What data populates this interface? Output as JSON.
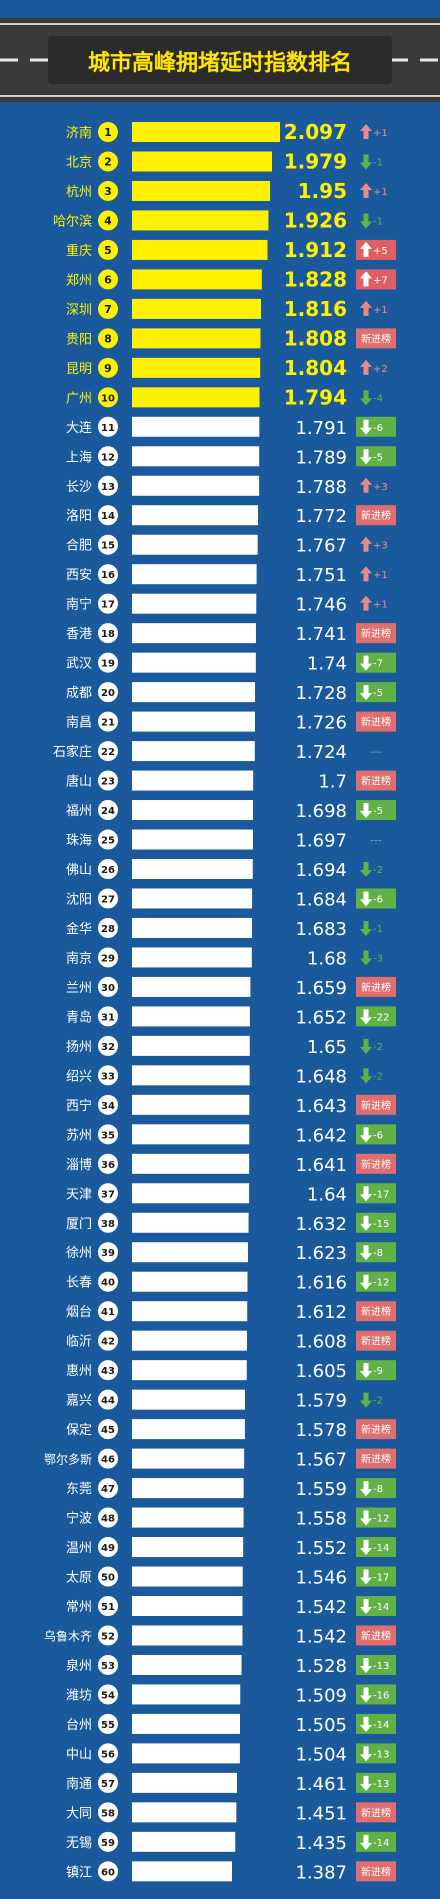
{
  "title": "城市高峰拥堵延时指数排名",
  "colors": {
    "background": "#1a5a9c",
    "header": "#3a3a3a",
    "title": "#ffe600",
    "top10_bar": "#fff200",
    "bar": "#ffffff",
    "top10_text": "#fff200",
    "text": "#ffffff",
    "badge_box": "#ffffff",
    "up_arrow": "#e88a8a",
    "down_arrow": "#62b146",
    "up_box": "#df5f63",
    "down_box": "#62b146",
    "new_box": "#df6f6f",
    "flat": "#7f9fc0"
  },
  "chart_data": {
    "type": "bar",
    "title": "城市高峰拥堵延时指数排名",
    "orientation": "horizontal",
    "change_legend": {
      "new": "新进榜",
      "flat": "---"
    },
    "rows": [
      {
        "rank": 1,
        "city": "济南",
        "value": 2.097,
        "change": "+1",
        "dir": "up",
        "box": false
      },
      {
        "rank": 2,
        "city": "北京",
        "value": 1.979,
        "change": "-1",
        "dir": "down",
        "box": false
      },
      {
        "rank": 3,
        "city": "杭州",
        "value": 1.95,
        "change": "+1",
        "dir": "up",
        "box": false
      },
      {
        "rank": 4,
        "city": "哈尔滨",
        "value": 1.926,
        "change": "-1",
        "dir": "down",
        "box": false
      },
      {
        "rank": 5,
        "city": "重庆",
        "value": 1.912,
        "change": "+5",
        "dir": "up",
        "box": true
      },
      {
        "rank": 6,
        "city": "郑州",
        "value": 1.828,
        "change": "+7",
        "dir": "up",
        "box": true
      },
      {
        "rank": 7,
        "city": "深圳",
        "value": 1.816,
        "change": "+1",
        "dir": "up",
        "box": false
      },
      {
        "rank": 8,
        "city": "贵阳",
        "value": 1.808,
        "change": "新进榜",
        "dir": "new",
        "box": true
      },
      {
        "rank": 9,
        "city": "昆明",
        "value": 1.804,
        "change": "+2",
        "dir": "up",
        "box": false
      },
      {
        "rank": 10,
        "city": "广州",
        "value": 1.794,
        "change": "-4",
        "dir": "down",
        "box": false
      },
      {
        "rank": 11,
        "city": "大连",
        "value": 1.791,
        "change": "-6",
        "dir": "down",
        "box": true
      },
      {
        "rank": 12,
        "city": "上海",
        "value": 1.789,
        "change": "-5",
        "dir": "down",
        "box": true
      },
      {
        "rank": 13,
        "city": "长沙",
        "value": 1.788,
        "change": "+3",
        "dir": "up",
        "box": false
      },
      {
        "rank": 14,
        "city": "洛阳",
        "value": 1.772,
        "change": "新进榜",
        "dir": "new",
        "box": true
      },
      {
        "rank": 15,
        "city": "合肥",
        "value": 1.767,
        "change": "+3",
        "dir": "up",
        "box": false
      },
      {
        "rank": 16,
        "city": "西安",
        "value": 1.751,
        "change": "+1",
        "dir": "up",
        "box": false
      },
      {
        "rank": 17,
        "city": "南宁",
        "value": 1.746,
        "change": "+1",
        "dir": "up",
        "box": false
      },
      {
        "rank": 18,
        "city": "香港",
        "value": 1.741,
        "change": "新进榜",
        "dir": "new",
        "box": true
      },
      {
        "rank": 19,
        "city": "武汉",
        "value": 1.74,
        "change": "-7",
        "dir": "down",
        "box": true
      },
      {
        "rank": 20,
        "city": "成都",
        "value": 1.728,
        "change": "-5",
        "dir": "down",
        "box": true
      },
      {
        "rank": 21,
        "city": "南昌",
        "value": 1.726,
        "change": "新进榜",
        "dir": "new",
        "box": true
      },
      {
        "rank": 22,
        "city": "石家庄",
        "value": 1.724,
        "change": "---",
        "dir": "flat",
        "box": false
      },
      {
        "rank": 23,
        "city": "唐山",
        "value": 1.7,
        "change": "新进榜",
        "dir": "new",
        "box": true
      },
      {
        "rank": 24,
        "city": "福州",
        "value": 1.698,
        "change": "-5",
        "dir": "down",
        "box": true
      },
      {
        "rank": 25,
        "city": "珠海",
        "value": 1.697,
        "change": "---",
        "dir": "flat",
        "box": false
      },
      {
        "rank": 26,
        "city": "佛山",
        "value": 1.694,
        "change": "-2",
        "dir": "down",
        "box": false
      },
      {
        "rank": 27,
        "city": "沈阳",
        "value": 1.684,
        "change": "-6",
        "dir": "down",
        "box": true
      },
      {
        "rank": 28,
        "city": "金华",
        "value": 1.683,
        "change": "-1",
        "dir": "down",
        "box": false
      },
      {
        "rank": 29,
        "city": "南京",
        "value": 1.68,
        "change": "-3",
        "dir": "down",
        "box": false
      },
      {
        "rank": 30,
        "city": "兰州",
        "value": 1.659,
        "change": "新进榜",
        "dir": "new",
        "box": true
      },
      {
        "rank": 31,
        "city": "青岛",
        "value": 1.652,
        "change": "-22",
        "dir": "down",
        "box": true
      },
      {
        "rank": 32,
        "city": "扬州",
        "value": 1.65,
        "change": "-2",
        "dir": "down",
        "box": false
      },
      {
        "rank": 33,
        "city": "绍兴",
        "value": 1.648,
        "change": "-2",
        "dir": "down",
        "box": false
      },
      {
        "rank": 34,
        "city": "西宁",
        "value": 1.643,
        "change": "新进榜",
        "dir": "new",
        "box": true
      },
      {
        "rank": 35,
        "city": "苏州",
        "value": 1.642,
        "change": "-6",
        "dir": "down",
        "box": true
      },
      {
        "rank": 36,
        "city": "淄博",
        "value": 1.641,
        "change": "新进榜",
        "dir": "new",
        "box": true
      },
      {
        "rank": 37,
        "city": "天津",
        "value": 1.64,
        "change": "-17",
        "dir": "down",
        "box": true
      },
      {
        "rank": 38,
        "city": "厦门",
        "value": 1.632,
        "change": "-15",
        "dir": "down",
        "box": true
      },
      {
        "rank": 39,
        "city": "徐州",
        "value": 1.623,
        "change": "-8",
        "dir": "down",
        "box": true
      },
      {
        "rank": 40,
        "city": "长春",
        "value": 1.616,
        "change": "-12",
        "dir": "down",
        "box": true
      },
      {
        "rank": 41,
        "city": "烟台",
        "value": 1.612,
        "change": "新进榜",
        "dir": "new",
        "box": true
      },
      {
        "rank": 42,
        "city": "临沂",
        "value": 1.608,
        "change": "新进榜",
        "dir": "new",
        "box": true
      },
      {
        "rank": 43,
        "city": "惠州",
        "value": 1.605,
        "change": "-9",
        "dir": "down",
        "box": true
      },
      {
        "rank": 44,
        "city": "嘉兴",
        "value": 1.579,
        "change": "-2",
        "dir": "down",
        "box": false
      },
      {
        "rank": 45,
        "city": "保定",
        "value": 1.578,
        "change": "新进榜",
        "dir": "new",
        "box": true
      },
      {
        "rank": 46,
        "city": "鄂尔多斯",
        "value": 1.567,
        "change": "新进榜",
        "dir": "new",
        "box": true
      },
      {
        "rank": 47,
        "city": "东莞",
        "value": 1.559,
        "change": "-8",
        "dir": "down",
        "box": true
      },
      {
        "rank": 48,
        "city": "宁波",
        "value": 1.558,
        "change": "-12",
        "dir": "down",
        "box": true
      },
      {
        "rank": 49,
        "city": "温州",
        "value": 1.552,
        "change": "-14",
        "dir": "down",
        "box": true
      },
      {
        "rank": 50,
        "city": "太原",
        "value": 1.546,
        "change": "-17",
        "dir": "down",
        "box": true
      },
      {
        "rank": 51,
        "city": "常州",
        "value": 1.542,
        "change": "-14",
        "dir": "down",
        "box": true
      },
      {
        "rank": 52,
        "city": "乌鲁木齐",
        "value": 1.542,
        "change": "新进榜",
        "dir": "new",
        "box": true
      },
      {
        "rank": 53,
        "city": "泉州",
        "value": 1.528,
        "change": "-13",
        "dir": "down",
        "box": true
      },
      {
        "rank": 54,
        "city": "潍坊",
        "value": 1.509,
        "change": "-16",
        "dir": "down",
        "box": true
      },
      {
        "rank": 55,
        "city": "台州",
        "value": 1.505,
        "change": "-14",
        "dir": "down",
        "box": true
      },
      {
        "rank": 56,
        "city": "中山",
        "value": 1.504,
        "change": "-13",
        "dir": "down",
        "box": true
      },
      {
        "rank": 57,
        "city": "南通",
        "value": 1.461,
        "change": "-13",
        "dir": "down",
        "box": true
      },
      {
        "rank": 58,
        "city": "大同",
        "value": 1.451,
        "change": "新进榜",
        "dir": "new",
        "box": true
      },
      {
        "rank": 59,
        "city": "无锡",
        "value": 1.435,
        "change": "-14",
        "dir": "down",
        "box": true
      },
      {
        "rank": 60,
        "city": "镇江",
        "value": 1.387,
        "change": "新进榜",
        "dir": "new",
        "box": true
      }
    ]
  }
}
